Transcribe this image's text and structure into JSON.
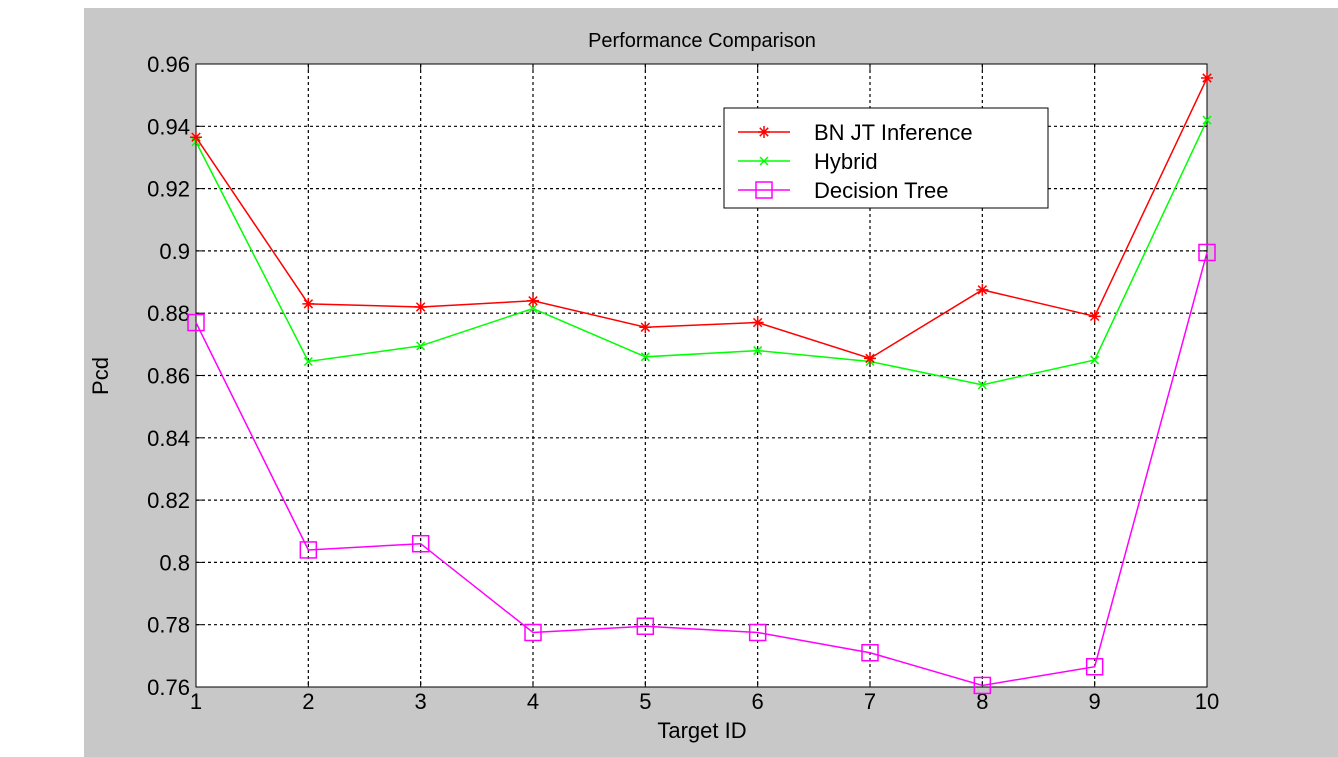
{
  "chart_data": {
    "type": "line",
    "title": "Performance Comparison",
    "xlabel": "Target ID",
    "ylabel": "Pcd",
    "x": [
      1,
      2,
      3,
      4,
      5,
      6,
      7,
      8,
      9,
      10
    ],
    "xlim": [
      1,
      10
    ],
    "ylim": [
      0.76,
      0.96
    ],
    "xticks": [
      "1",
      "2",
      "3",
      "4",
      "5",
      "6",
      "7",
      "8",
      "9",
      "10"
    ],
    "yticks": [
      "0.76",
      "0.78",
      "0.8",
      "0.82",
      "0.84",
      "0.86",
      "0.88",
      "0.9",
      "0.92",
      "0.94",
      "0.96"
    ],
    "grid": true,
    "legend_position": "top-right",
    "series": [
      {
        "name": "BN JT Inference",
        "color": "#ff0000",
        "marker": "star",
        "values": [
          0.9365,
          0.883,
          0.882,
          0.884,
          0.8755,
          0.877,
          0.8655,
          0.8875,
          0.879,
          0.9555
        ]
      },
      {
        "name": "Hybrid",
        "color": "#00ff00",
        "marker": "x",
        "values": [
          0.935,
          0.8645,
          0.8695,
          0.8815,
          0.866,
          0.868,
          0.8645,
          0.857,
          0.865,
          0.942
        ]
      },
      {
        "name": "Decision Tree",
        "color": "#ff00ff",
        "marker": "square",
        "values": [
          0.877,
          0.804,
          0.806,
          0.7775,
          0.7795,
          0.7775,
          0.771,
          0.7605,
          0.7665,
          0.8995
        ]
      }
    ]
  }
}
